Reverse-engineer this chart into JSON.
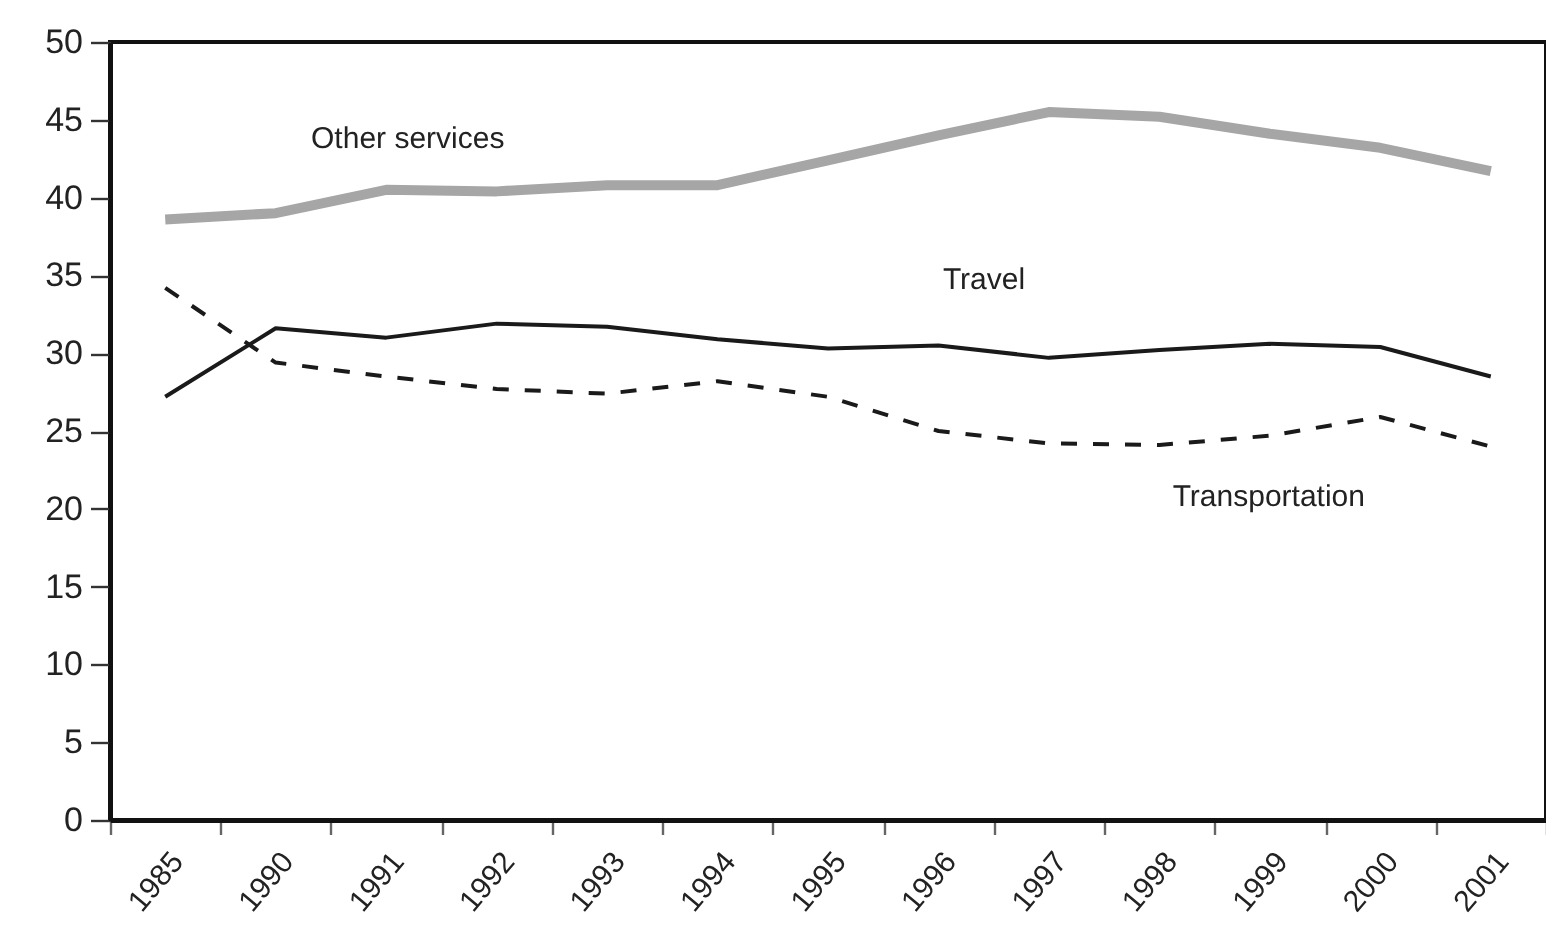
{
  "chart_data": {
    "type": "line",
    "categories": [
      "1985",
      "1990",
      "1991",
      "1992",
      "1993",
      "1994",
      "1995",
      "1996",
      "1997",
      "1998",
      "1999",
      "2000",
      "2001"
    ],
    "series": [
      {
        "name": "Other services",
        "color": "#a6a6a6",
        "line_style": "solid",
        "values": [
          38.6,
          39.0,
          40.5,
          40.4,
          40.8,
          40.8,
          42.4,
          44.0,
          45.5,
          45.2,
          44.1,
          43.2,
          41.7
        ]
      },
      {
        "name": "Travel",
        "color": "#1a1a1a",
        "line_style": "solid",
        "values": [
          27.2,
          31.6,
          31.0,
          31.9,
          31.7,
          30.9,
          30.3,
          30.5,
          29.7,
          30.2,
          30.6,
          30.4,
          28.5
        ]
      },
      {
        "name": "Transportation",
        "color": "#1a1a1a",
        "line_style": "dashed",
        "values": [
          34.2,
          29.4,
          28.5,
          27.7,
          27.4,
          28.2,
          27.2,
          25.0,
          24.2,
          24.1,
          24.7,
          25.9,
          24.0
        ]
      }
    ],
    "ylim": [
      0,
      50
    ],
    "yticks": [
      0,
      5,
      10,
      15,
      20,
      25,
      30,
      35,
      40,
      45,
      50
    ],
    "grid": false,
    "legend": false,
    "marker": "none"
  }
}
